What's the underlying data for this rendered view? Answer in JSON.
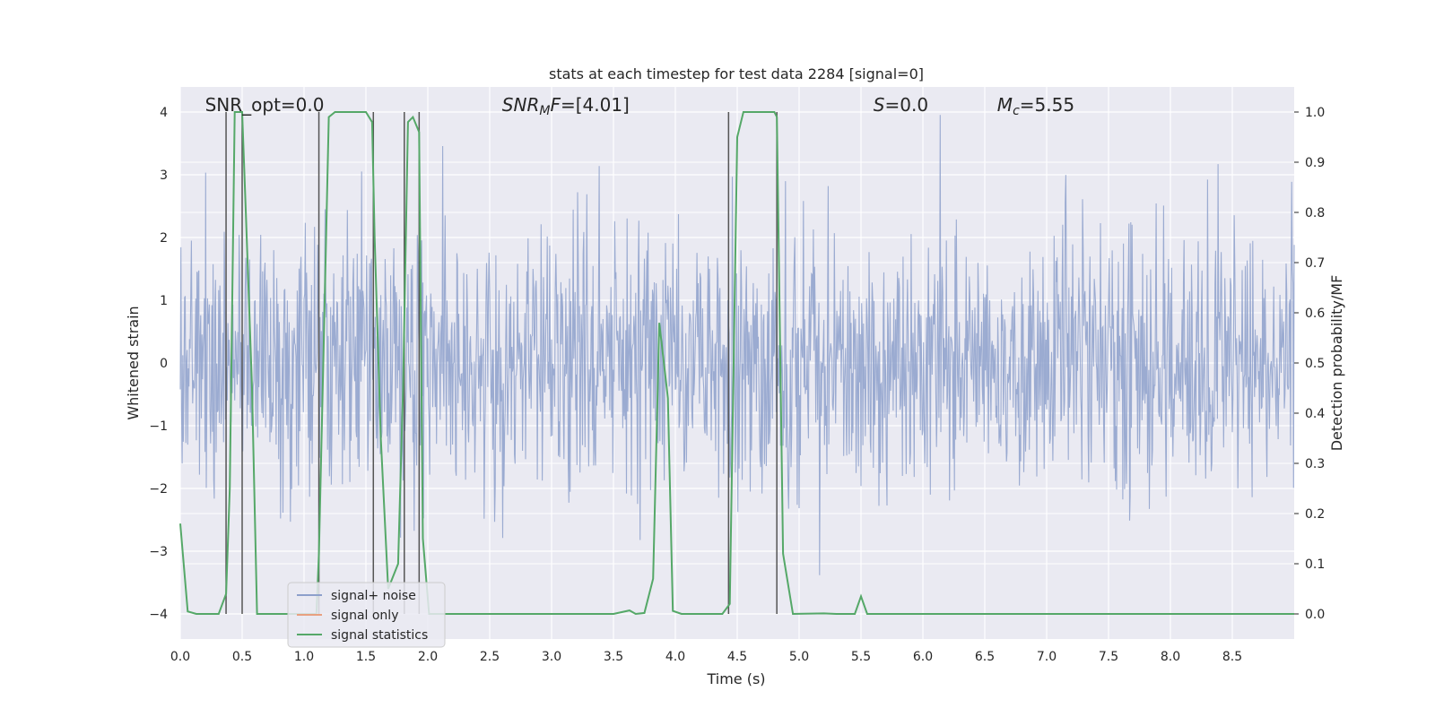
{
  "chart_data": {
    "type": "line",
    "title": "stats at each timestep for test data 2284 [signal=0]",
    "xlabel": "Time (s)",
    "ylabel_left": "Whitened strain",
    "ylabel_right": "Detection probability/MF",
    "xlim": [
      0.0,
      9.0
    ],
    "ylim_left": [
      -4.4,
      4.4
    ],
    "ylim_right": [
      -0.05,
      1.05
    ],
    "xticks": [
      "0.0",
      "0.5",
      "1.0",
      "1.5",
      "2.0",
      "2.5",
      "3.0",
      "3.5",
      "4.0",
      "4.5",
      "5.0",
      "5.5",
      "6.0",
      "6.5",
      "7.0",
      "7.5",
      "8.0",
      "8.5"
    ],
    "yticks_left": [
      "−4",
      "−3",
      "−2",
      "−1",
      "0",
      "1",
      "2",
      "3",
      "4"
    ],
    "yticks_right": [
      "0.0",
      "0.1",
      "0.2",
      "0.3",
      "0.4",
      "0.5",
      "0.6",
      "0.7",
      "0.8",
      "0.9",
      "1.0"
    ],
    "grid": true,
    "annotations": [
      {
        "text": "SNR_opt=0.0",
        "x": 0.2
      },
      {
        "text": "SNRMF=[4.01]",
        "x": 2.6
      },
      {
        "text": "S=0.0",
        "x": 5.6
      },
      {
        "text": "Mc=5.55",
        "x": 6.6
      }
    ],
    "legend": {
      "placement": "lower-left",
      "entries": [
        "signal+ noise",
        "signal only",
        "signal statistics"
      ]
    },
    "series": [
      {
        "name": "signal+ noise",
        "axis": "left",
        "color": "#8da0cb",
        "description": "whitened strain noise, std about 1, peaks around ±3.5",
        "sample_rate": 200,
        "std": 1.0
      },
      {
        "name": "signal only",
        "axis": "left",
        "color": "#e8a080",
        "values": []
      },
      {
        "name": "signal statistics",
        "axis": "right",
        "color": "#55a868",
        "x": [
          0.0,
          0.06,
          0.13,
          0.24,
          0.31,
          0.37,
          0.4,
          0.44,
          0.5,
          0.53,
          0.58,
          0.62,
          0.7,
          0.8,
          0.9,
          1.0,
          1.1,
          1.12,
          1.16,
          1.2,
          1.25,
          1.3,
          1.4,
          1.5,
          1.55,
          1.57,
          1.62,
          1.68,
          1.76,
          1.8,
          1.84,
          1.88,
          1.93,
          1.96,
          2.01,
          2.05,
          2.1,
          2.5,
          3.0,
          3.5,
          3.63,
          3.68,
          3.75,
          3.82,
          3.87,
          3.94,
          3.98,
          4.05,
          4.2,
          4.38,
          4.44,
          4.5,
          4.55,
          4.65,
          4.8,
          4.82,
          4.87,
          4.95,
          5.2,
          5.3,
          5.45,
          5.5,
          5.55,
          5.6,
          6.0,
          7.0,
          8.0,
          9.0
        ],
        "values": [
          0.18,
          0.005,
          0.0,
          0.0,
          0.0,
          0.04,
          0.25,
          1.0,
          1.0,
          0.8,
          0.45,
          0.0,
          0.0,
          0.0,
          0.0,
          0.0,
          0.0,
          0.12,
          0.55,
          0.99,
          1.0,
          1.0,
          1.0,
          1.0,
          0.98,
          0.75,
          0.35,
          0.05,
          0.1,
          0.45,
          0.98,
          0.99,
          0.96,
          0.15,
          0.0,
          0.0,
          0.0,
          0.0,
          0.0,
          0.0,
          0.007,
          0.0,
          0.002,
          0.07,
          0.58,
          0.43,
          0.006,
          0.0,
          0.0,
          0.0,
          0.02,
          0.95,
          1.0,
          1.0,
          1.0,
          0.99,
          0.12,
          0.0,
          0.001,
          0.0,
          0.0,
          0.035,
          0.0,
          0.0,
          0.0,
          0.0,
          0.0,
          0.0
        ]
      }
    ],
    "vertical_lines": {
      "color": "#555555",
      "x": [
        0.37,
        0.5,
        1.12,
        1.56,
        1.81,
        1.93,
        4.43,
        4.82
      ]
    }
  }
}
